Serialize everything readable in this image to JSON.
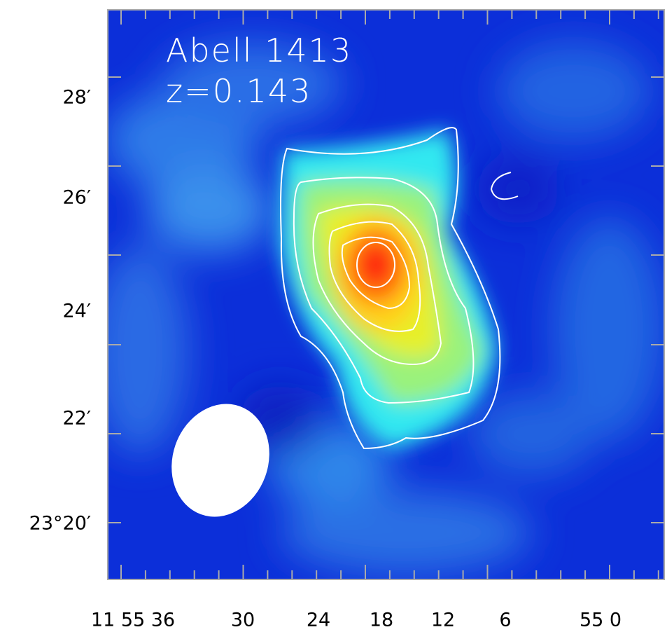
{
  "image": {
    "title": "Abell 1413",
    "redshift": "z=0.143",
    "y_tick_labels": [
      "28′",
      "26′",
      "24′",
      "22′",
      "23°20′"
    ],
    "x_tick_labels": [
      "11 55 36",
      "30",
      "24",
      "18",
      "12",
      "6",
      "55 0"
    ]
  }
}
